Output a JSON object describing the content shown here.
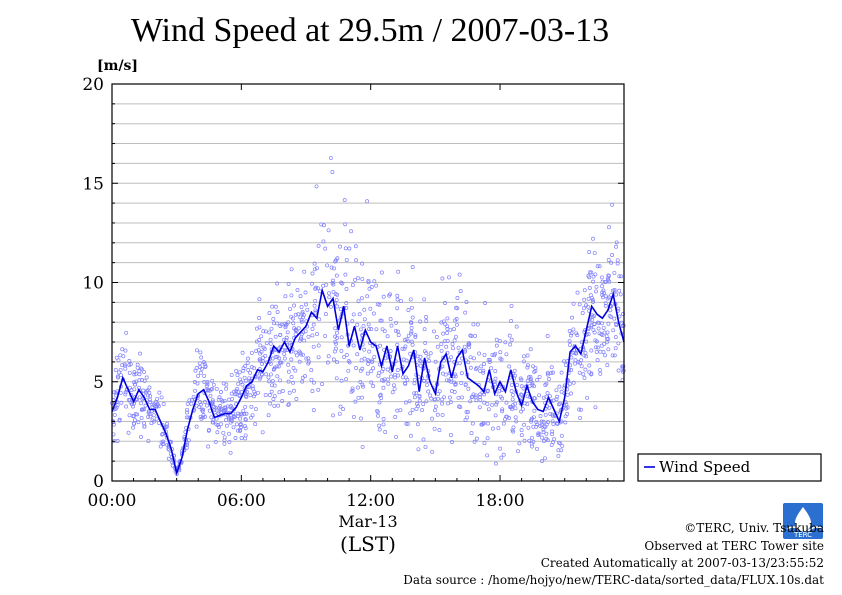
{
  "title": "Wind Speed at 29.5m / 2007-03-13",
  "credits": [
    "©TERC, Univ. Tsukuba",
    "Observed at TERC Tower site",
    "Created Automatically at 2007-03-13/23:55:52",
    "Data source : /home/hojyo/new/TERC-data/sorted_data/FLUX.10s.dat"
  ],
  "logo_text": "TERC",
  "colors": {
    "line": "#0000dd",
    "points": "#8080ff",
    "grid": "#bdbdbd",
    "frame": "#000000"
  },
  "chart_data": {
    "type": "scatter",
    "title": "Wind Speed at 29.5m / 2007-03-13",
    "ylabel_unit": "[m/s]",
    "xlabel_date": "Mar-13",
    "xlabel": "(LST)",
    "xlim_hours": [
      0,
      23.75
    ],
    "ylim": [
      0,
      20
    ],
    "x_ticks": [
      "00:00",
      "06:00",
      "12:00",
      "18:00"
    ],
    "x_tick_hours": [
      0,
      6,
      12,
      18
    ],
    "y_ticks": [
      0,
      5,
      10,
      15,
      20
    ],
    "grid": true,
    "grid_y_step": 1,
    "legend": {
      "position": "bottom-right-outside",
      "label": "Wind Speed"
    },
    "series": [
      {
        "name": "Wind Speed",
        "kind": "line",
        "x_hours": [
          0.0,
          0.25,
          0.5,
          0.75,
          1.0,
          1.25,
          1.5,
          1.75,
          2.0,
          2.25,
          2.5,
          2.75,
          3.0,
          3.25,
          3.5,
          3.75,
          4.0,
          4.25,
          4.5,
          4.75,
          5.0,
          5.25,
          5.5,
          5.75,
          6.0,
          6.25,
          6.5,
          6.75,
          7.0,
          7.25,
          7.5,
          7.75,
          8.0,
          8.25,
          8.5,
          8.75,
          9.0,
          9.25,
          9.5,
          9.75,
          10.0,
          10.25,
          10.5,
          10.75,
          11.0,
          11.25,
          11.5,
          11.75,
          12.0,
          12.25,
          12.5,
          12.75,
          13.0,
          13.25,
          13.5,
          13.75,
          14.0,
          14.25,
          14.5,
          14.75,
          15.0,
          15.25,
          15.5,
          15.75,
          16.0,
          16.25,
          16.5,
          16.75,
          17.0,
          17.25,
          17.5,
          17.75,
          18.0,
          18.25,
          18.5,
          18.75,
          19.0,
          19.25,
          19.5,
          19.75,
          20.0,
          20.25,
          20.5,
          20.75,
          21.0,
          21.25,
          21.5,
          21.75,
          22.0,
          22.25,
          22.5,
          22.75,
          23.0,
          23.25,
          23.5,
          23.75
        ],
        "values": [
          3.5,
          4.2,
          5.2,
          4.6,
          4.0,
          4.6,
          4.2,
          3.6,
          3.6,
          3.0,
          2.4,
          1.6,
          0.4,
          1.2,
          2.6,
          3.6,
          4.4,
          4.6,
          4.0,
          3.2,
          3.3,
          3.4,
          3.4,
          3.7,
          4.2,
          4.8,
          5.0,
          5.6,
          5.5,
          6.0,
          6.8,
          6.5,
          7.0,
          6.5,
          7.2,
          7.5,
          7.8,
          8.5,
          8.2,
          9.6,
          8.8,
          9.2,
          7.6,
          8.8,
          6.8,
          7.8,
          6.6,
          7.6,
          7.0,
          6.8,
          5.8,
          6.8,
          5.5,
          6.8,
          5.4,
          5.8,
          6.6,
          4.5,
          6.2,
          5.0,
          4.4,
          6.0,
          6.4,
          5.2,
          6.2,
          6.6,
          5.2,
          5.0,
          4.8,
          4.5,
          5.6,
          4.4,
          5.0,
          4.5,
          5.6,
          4.5,
          3.8,
          4.8,
          4.0,
          3.6,
          3.5,
          4.2,
          3.6,
          3.0,
          4.2,
          6.5,
          6.8,
          6.4,
          7.6,
          8.8,
          8.4,
          8.2,
          8.6,
          9.4,
          8.0,
          7.0
        ]
      }
    ],
    "scatter_note": "10-second samples plotted as open circles scattered around the line, spread widening in the afternoon"
  }
}
